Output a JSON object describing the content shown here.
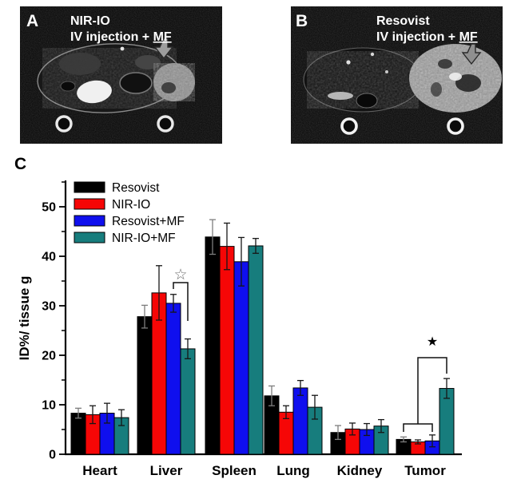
{
  "figure_title": "In vivo MRI and biodistribution figure",
  "panels": {
    "a": {
      "label": "A",
      "agent": "NIR-IO",
      "injection_prefix": "IV injection + ",
      "injection_underlined": "MF"
    },
    "b": {
      "label": "B",
      "agent": "Resovist",
      "injection_prefix": "IV injection + ",
      "injection_underlined": "MF"
    },
    "c": {
      "label": "C"
    }
  },
  "chart_data": {
    "type": "bar",
    "title": "",
    "xlabel": "",
    "ylabel": "ID%/ tissue g",
    "ylim": [
      0,
      55
    ],
    "yticks": [
      0,
      10,
      20,
      30,
      40,
      50
    ],
    "yticks_minor": [
      5,
      15,
      25,
      35,
      45,
      55
    ],
    "grid": false,
    "legend_position": "top-left",
    "categories": [
      "Heart",
      "Liver",
      "Spleen",
      "Lung",
      "Kidney",
      "Tumor"
    ],
    "series": [
      {
        "name": "Resovist",
        "color": "#000000",
        "values": [
          8.3,
          27.8,
          43.9,
          11.8,
          4.4,
          3.0
        ],
        "errors": [
          1.0,
          2.3,
          3.5,
          2.0,
          1.4,
          0.5
        ]
      },
      {
        "name": "NIR-IO",
        "color": "#f60606",
        "values": [
          8.0,
          32.6,
          42.0,
          8.5,
          5.1,
          2.5
        ],
        "errors": [
          1.8,
          5.5,
          4.7,
          1.3,
          1.2,
          0.4
        ]
      },
      {
        "name": "Resovist+MF",
        "color": "#0f0fee",
        "values": [
          8.3,
          30.5,
          38.9,
          13.4,
          5.0,
          2.7
        ],
        "errors": [
          2.0,
          1.8,
          4.9,
          1.5,
          1.2,
          1.2
        ]
      },
      {
        "name": "NIR-IO+MF",
        "color": "#177d7d",
        "values": [
          7.4,
          21.3,
          42.1,
          9.5,
          5.7,
          13.3
        ],
        "errors": [
          1.6,
          2.0,
          1.5,
          2.4,
          1.3,
          2.0
        ]
      }
    ],
    "annotations": [
      {
        "symbol": "☆",
        "meaning": "significant difference (open star)",
        "category": "Liver",
        "compared": [
          "Resovist+MF",
          "NIR-IO+MF"
        ]
      },
      {
        "symbol": "★",
        "meaning": "significant difference (filled star)",
        "category": "Tumor",
        "compared": [
          "Resovist, NIR-IO, Resovist+MF",
          "NIR-IO+MF"
        ]
      }
    ]
  }
}
